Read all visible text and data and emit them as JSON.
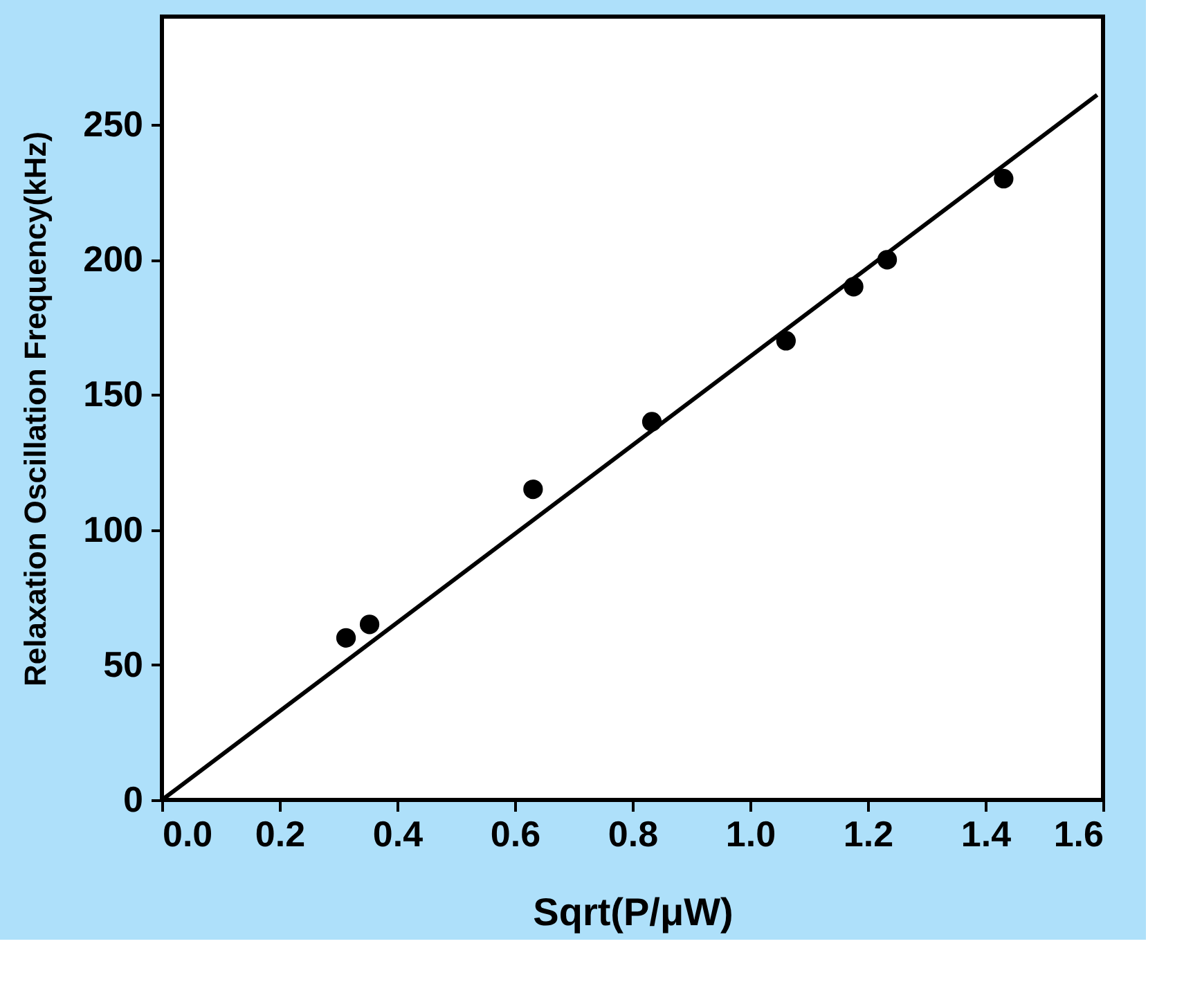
{
  "chart_data": {
    "type": "scatter",
    "xlabel": "Sqrt(P/μW)",
    "ylabel": "Relaxation Oscillation Frequency(kHz)",
    "xlim": [
      0,
      1.6
    ],
    "xticks": [
      {
        "value": 0,
        "label": "0.0"
      },
      0.2,
      0.4,
      0.6,
      0.8,
      {
        "value": 1,
        "label": "1.0"
      },
      1.2,
      1.4,
      1.6
    ],
    "ylim": [
      0,
      290
    ],
    "yticks": [
      0,
      50,
      100,
      150,
      200,
      250
    ],
    "grid": false,
    "series": [
      {
        "type": "scatter",
        "marker": "circle",
        "color": "#000000",
        "x": [
          0.313,
          0.353,
          0.631,
          0.833,
          1.061,
          1.176,
          1.233,
          1.431
        ],
        "values": [
          60,
          65,
          115,
          140,
          170,
          190,
          200,
          230
        ]
      },
      {
        "type": "line",
        "line_style": "solid",
        "color": "#000000",
        "x": [
          0,
          1.59
        ],
        "values": [
          0,
          261
        ]
      }
    ]
  }
}
